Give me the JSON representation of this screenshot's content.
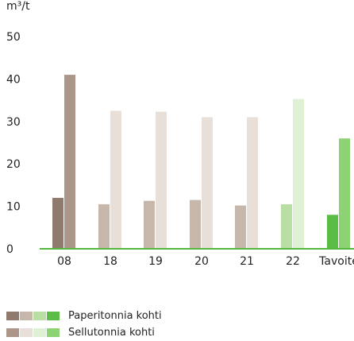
{
  "chart_data": {
    "type": "bar",
    "ylabel": "m³/t",
    "ylim": [
      0,
      50
    ],
    "yticks": [
      0,
      10,
      20,
      30,
      40,
      50
    ],
    "categories": [
      "08",
      "18",
      "19",
      "20",
      "21",
      "22",
      "Tavoite"
    ],
    "series": [
      {
        "name": "Paperitonnia kohti",
        "values": [
          12,
          10.5,
          11.3,
          11.5,
          10.2,
          10.5,
          8
        ]
      },
      {
        "name": "Sellutonnia kohti",
        "values": [
          41,
          32.5,
          32.3,
          31,
          31,
          35.3,
          26
        ]
      }
    ],
    "colors": {
      "Paperitonnia kohti": [
        "#8f7a6d",
        "#c7b7aa",
        "#c7b7aa",
        "#c7b7aa",
        "#c7b7aa",
        "#b9dea4",
        "#5bbd45"
      ],
      "Sellutonnia kohti": [
        "#ac968a",
        "#e8dfd8",
        "#e8dfd8",
        "#e8dfd8",
        "#e8dfd8",
        "#dff1d4",
        "#8ed373"
      ]
    },
    "axis_color": "#55b83e",
    "legend_swatches": {
      "Paperitonnia kohti": [
        "#8f7a6d",
        "#c7b7aa",
        "#b9dea4",
        "#5bbd45"
      ],
      "Sellutonnia kohti": [
        "#ac968a",
        "#e8dfd8",
        "#dff1d4",
        "#8ed373"
      ]
    },
    "grid": false,
    "legend_position": "bottom-left"
  }
}
